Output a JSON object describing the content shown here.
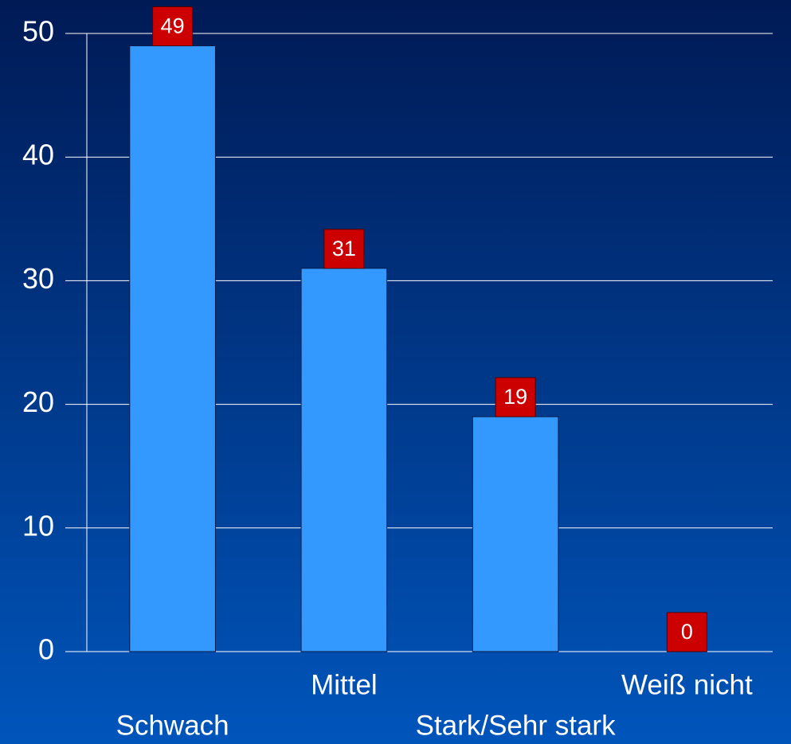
{
  "chart_data": {
    "type": "bar",
    "categories": [
      "Schwach",
      "Mittel",
      "Stark/Sehr stark",
      "Weiß nicht"
    ],
    "values": [
      49,
      31,
      19,
      0
    ],
    "color": "#3399ff",
    "ylim": [
      0,
      50
    ],
    "yticks": [
      0,
      10,
      20,
      30,
      40,
      50
    ],
    "grid": true
  }
}
